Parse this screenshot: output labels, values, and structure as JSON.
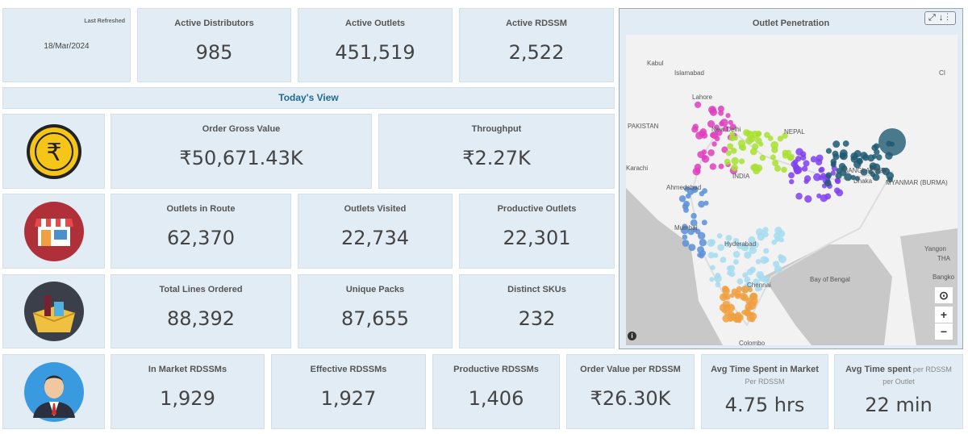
{
  "header": {
    "last_refreshed_label": "Last Refreshed",
    "last_refreshed_date": "18/Mar/2024"
  },
  "kpis_top": [
    {
      "label": "Active Distributors",
      "value": "985"
    },
    {
      "label": "Active Outlets",
      "value": "451,519"
    },
    {
      "label": "Active RDSSM",
      "value": "2,522"
    }
  ],
  "section_title": "Today's View",
  "order": {
    "icon": "rupee-coin-icon",
    "items": [
      {
        "label": "Order Gross Value",
        "value": "₹50,671.43K"
      },
      {
        "label": "Throughput",
        "value": "₹2.27K"
      }
    ]
  },
  "outlets": {
    "icon": "store-icon",
    "items": [
      {
        "label": "Outlets in Route",
        "value": "62,370"
      },
      {
        "label": "Outlets Visited",
        "value": "22,734"
      },
      {
        "label": "Productive Outlets",
        "value": "22,301"
      }
    ]
  },
  "lines": {
    "icon": "products-box-icon",
    "items": [
      {
        "label": "Total Lines Ordered",
        "value": "88,392"
      },
      {
        "label": "Unique Packs",
        "value": "87,655"
      },
      {
        "label": "Distinct SKUs",
        "value": "232"
      }
    ]
  },
  "rdssm": {
    "icon": "salesman-avatar-icon",
    "items": [
      {
        "label": "In Market RDSSMs",
        "value": "1,929"
      },
      {
        "label": "Effective RDSSMs",
        "value": "1,927"
      },
      {
        "label": "Productive RDSSMs",
        "value": "1,406"
      },
      {
        "label": "Order Value per RDSSM",
        "value": "₹26.30K"
      }
    ],
    "time_market": {
      "label": "Avg Time Spent in Market",
      "sub": "Per RDSSM",
      "value": "4.75 hrs"
    },
    "time_outlet": {
      "label": "Avg Time spent",
      "label_rest": " per RDSSM",
      "sub": "per Outlet",
      "value": "22 min"
    }
  },
  "map": {
    "title": "Outlet Penetration",
    "tools": [
      "expand-icon",
      "download-icon",
      "more-icon"
    ],
    "places": [
      "Kabul",
      "Islamabad",
      "Lahore",
      "PAKISTAN",
      "New Delhi",
      "NEPAL",
      "Karachi",
      "INDIA",
      "Ahmedabad",
      "BANGLADESH",
      "Dhaka",
      "MYANMAR (BURMA)",
      "Mumbai",
      "Hyderabad",
      "Yangon",
      "Bay of Bengal",
      "Chennai",
      "Bangko",
      "THA",
      "Colombo",
      "CI"
    ],
    "colors": {
      "north": "#e040c0",
      "central": "#a8e030",
      "east": "#8040f0",
      "northeast": "#1f5a72",
      "west": "#5a8fd8",
      "south": "#a6dcf0",
      "tn": "#f0a040"
    }
  }
}
